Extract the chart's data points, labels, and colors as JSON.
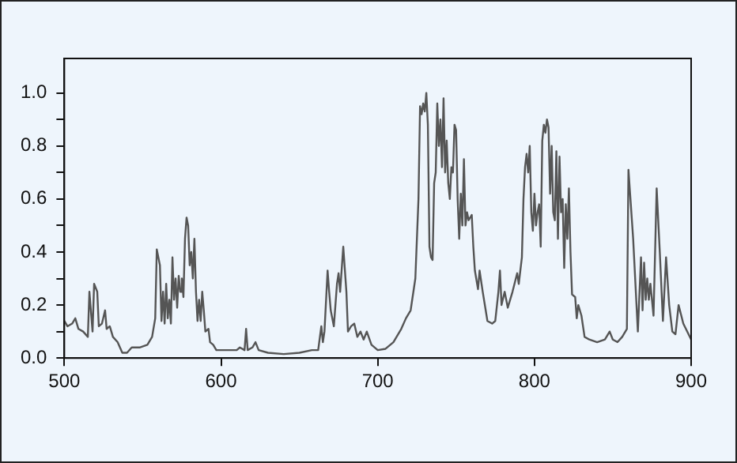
{
  "chart_data": {
    "type": "line",
    "grid": false,
    "legend": false,
    "marker": "none",
    "line_style": "solid",
    "xlim": [
      500,
      900
    ],
    "xticks": [
      500,
      600,
      700,
      800,
      900
    ],
    "ylim": [
      0,
      1.13
    ],
    "yticks": [
      {
        "value": 0,
        "label": "0.0"
      },
      {
        "value": 0.1,
        "label": null
      },
      {
        "value": 0.2,
        "label": "0.2"
      },
      {
        "value": 0.3,
        "label": null
      },
      {
        "value": 0.4,
        "label": "0.4"
      },
      {
        "value": 0.5,
        "label": null
      },
      {
        "value": 0.6,
        "label": "0.6"
      },
      {
        "value": 0.7,
        "label": null
      },
      {
        "value": 0.8,
        "label": "0.8"
      },
      {
        "value": 0.9,
        "label": null
      },
      {
        "value": 1.0,
        "label": "1.0"
      }
    ],
    "series": [
      {
        "color": "#555555",
        "x": [
          500,
          502,
          505,
          507,
          509,
          512,
          515,
          516,
          518,
          519,
          521,
          522,
          524,
          526,
          527,
          529,
          531,
          534,
          537,
          540,
          543,
          548,
          553,
          556,
          558,
          559,
          561,
          562,
          563,
          564,
          565,
          566,
          567,
          568,
          569,
          570,
          571,
          572,
          573,
          574,
          575,
          576,
          577,
          578,
          579,
          580,
          581,
          582,
          583,
          584,
          585,
          586,
          587,
          588,
          589,
          590,
          592,
          593,
          595,
          597,
          605,
          610,
          612,
          615,
          616,
          617,
          620,
          622,
          624,
          630,
          640,
          650,
          658,
          662,
          664,
          665,
          666,
          668,
          669,
          670,
          672,
          674,
          675,
          676,
          678,
          680,
          681,
          683,
          685,
          687,
          689,
          691,
          693,
          696,
          700,
          705,
          710,
          715,
          718,
          721,
          724,
          726,
          727,
          728,
          729,
          730,
          731,
          732,
          733,
          734,
          735,
          736,
          737,
          738,
          739,
          740,
          741,
          742,
          743,
          744,
          745,
          746,
          747,
          748,
          749,
          750,
          751,
          752,
          753,
          754,
          755,
          756,
          757,
          758,
          760,
          761,
          762,
          764,
          765,
          767,
          770,
          773,
          775,
          777,
          778,
          779,
          781,
          783,
          786,
          789,
          790,
          792,
          793,
          794,
          795,
          796,
          797,
          798,
          799,
          800,
          801,
          802,
          803,
          804,
          805,
          806,
          807,
          808,
          809,
          810,
          811,
          812,
          813,
          814,
          815,
          816,
          817,
          818,
          819,
          820,
          821,
          822,
          823,
          824,
          826,
          827,
          828,
          830,
          832,
          835,
          840,
          845,
          848,
          850,
          853,
          856,
          859,
          860,
          863,
          866,
          868,
          869,
          870,
          871,
          872,
          873,
          874,
          876,
          878,
          880,
          882,
          884,
          886,
          888,
          890,
          892,
          895,
          900
        ],
        "values": [
          0.14,
          0.12,
          0.13,
          0.15,
          0.11,
          0.1,
          0.08,
          0.25,
          0.1,
          0.28,
          0.25,
          0.12,
          0.13,
          0.18,
          0.11,
          0.12,
          0.08,
          0.06,
          0.02,
          0.02,
          0.04,
          0.04,
          0.05,
          0.08,
          0.15,
          0.41,
          0.35,
          0.14,
          0.25,
          0.13,
          0.28,
          0.15,
          0.22,
          0.13,
          0.38,
          0.22,
          0.3,
          0.19,
          0.31,
          0.25,
          0.3,
          0.23,
          0.45,
          0.53,
          0.5,
          0.35,
          0.4,
          0.3,
          0.45,
          0.25,
          0.14,
          0.22,
          0.14,
          0.25,
          0.18,
          0.1,
          0.11,
          0.06,
          0.05,
          0.03,
          0.03,
          0.03,
          0.04,
          0.03,
          0.11,
          0.03,
          0.04,
          0.06,
          0.03,
          0.02,
          0.015,
          0.02,
          0.03,
          0.03,
          0.12,
          0.06,
          0.1,
          0.33,
          0.25,
          0.18,
          0.12,
          0.28,
          0.32,
          0.25,
          0.42,
          0.25,
          0.1,
          0.12,
          0.13,
          0.08,
          0.1,
          0.07,
          0.1,
          0.05,
          0.03,
          0.035,
          0.06,
          0.11,
          0.15,
          0.18,
          0.3,
          0.6,
          0.95,
          0.92,
          0.96,
          0.93,
          1.0,
          0.88,
          0.42,
          0.38,
          0.37,
          0.66,
          0.7,
          0.96,
          0.8,
          0.9,
          0.72,
          0.98,
          0.7,
          0.82,
          0.66,
          0.6,
          0.72,
          0.7,
          0.88,
          0.86,
          0.6,
          0.45,
          0.62,
          0.5,
          0.75,
          0.5,
          0.55,
          0.52,
          0.54,
          0.42,
          0.33,
          0.26,
          0.33,
          0.25,
          0.14,
          0.13,
          0.14,
          0.25,
          0.33,
          0.2,
          0.25,
          0.19,
          0.25,
          0.32,
          0.28,
          0.38,
          0.6,
          0.72,
          0.77,
          0.7,
          0.8,
          0.55,
          0.48,
          0.62,
          0.5,
          0.55,
          0.58,
          0.42,
          0.82,
          0.88,
          0.85,
          0.9,
          0.87,
          0.62,
          0.8,
          0.55,
          0.52,
          0.78,
          0.45,
          0.76,
          0.55,
          0.6,
          0.34,
          0.58,
          0.45,
          0.64,
          0.4,
          0.24,
          0.23,
          0.15,
          0.2,
          0.16,
          0.08,
          0.07,
          0.06,
          0.07,
          0.1,
          0.07,
          0.06,
          0.08,
          0.11,
          0.71,
          0.45,
          0.1,
          0.38,
          0.18,
          0.36,
          0.22,
          0.3,
          0.22,
          0.28,
          0.16,
          0.64,
          0.4,
          0.14,
          0.38,
          0.2,
          0.1,
          0.09,
          0.2,
          0.13,
          0.07
        ]
      }
    ]
  }
}
